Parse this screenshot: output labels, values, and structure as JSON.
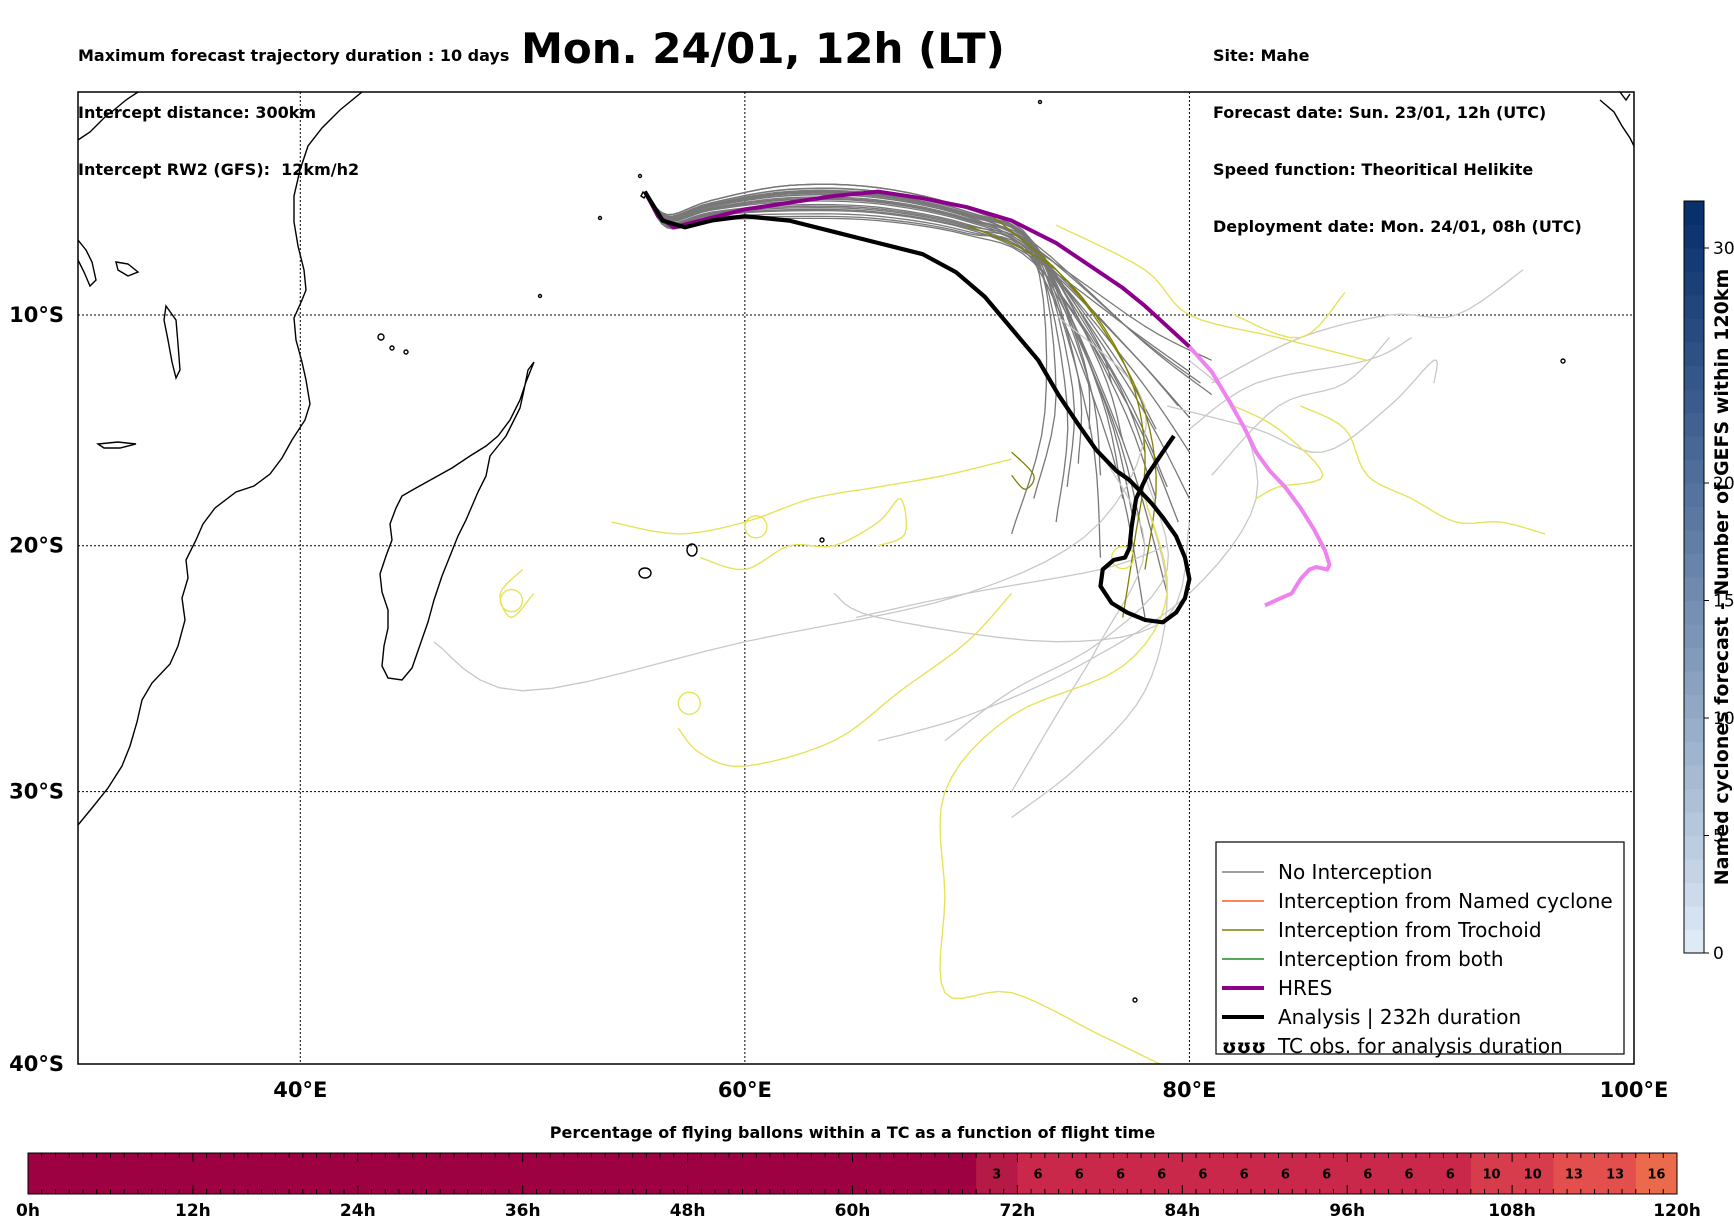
{
  "header": {
    "title": "Mon. 24/01, 12h (LT)",
    "left_lines": [
      "Maximum forecast trajectory duration : 10 days",
      "Intercept distance: 300km",
      "Intercept RW2 (GFS):  12km/h2"
    ],
    "right_lines": [
      "Site: Mahe",
      "Forecast date: Sun. 23/01, 12h (UTC)",
      "Speed function: Theoritical Helikite",
      "Deployment date: Mon. 24/01, 08h (UTC)"
    ]
  },
  "chart_data": [
    {
      "type": "line",
      "subtype": "map-trajectories",
      "title": "",
      "x_ticks": [
        "40°E",
        "60°E",
        "80°E",
        "100°E"
      ],
      "x_tick_values": [
        40,
        60,
        80,
        100
      ],
      "y_ticks": [
        "10°S",
        "20°S",
        "30°S",
        "40°S"
      ],
      "y_tick_values": [
        -10,
        -20,
        -30,
        -40
      ],
      "xlim": [
        30,
        100
      ],
      "ylim": [
        -40,
        0.5
      ],
      "grid": true,
      "legend_placement": "lower-right",
      "legend": [
        {
          "label": "No Interception",
          "color": "#808080",
          "style": "thin"
        },
        {
          "label": "Interception from Named cyclone",
          "color": "#ff5a1e",
          "style": "thin"
        },
        {
          "label": "Interception from Trochoid",
          "color": "#808000",
          "style": "thin"
        },
        {
          "label": "Interception from both",
          "color": "#1e8c1e",
          "style": "thin"
        },
        {
          "label": "HRES",
          "color": "#8b008b",
          "style": "thick"
        },
        {
          "label": "Analysis | 232h duration",
          "color": "#000000",
          "style": "thick"
        },
        {
          "label": "TC obs. for analysis duration",
          "color": "#000000",
          "style": "glyph",
          "glyph": "ʊʊʊ"
        }
      ],
      "series": [
        {
          "name": "HRES",
          "color": "#8b008b",
          "highlight_color": "#ee82ee",
          "lon": [
            55.5,
            56.1,
            56.8,
            58,
            60,
            62,
            64,
            66,
            68,
            70,
            72,
            74,
            75.5,
            77,
            78,
            79,
            80,
            81,
            81.8,
            82.5,
            83,
            83.6,
            84.3,
            85,
            85.6,
            86.1,
            86.3,
            86.2,
            85.7,
            85.4,
            85,
            84.6,
            84.1,
            83.4
          ],
          "lat": [
            -4.5,
            -5.6,
            -6.1,
            -5.8,
            -5.3,
            -5.0,
            -4.7,
            -4.5,
            -4.8,
            -5.2,
            -5.8,
            -6.8,
            -7.8,
            -8.8,
            -9.6,
            -10.5,
            -11.4,
            -12.5,
            -13.8,
            -15.0,
            -16.0,
            -16.8,
            -17.5,
            -18.4,
            -19.3,
            -20.2,
            -20.8,
            -21.0,
            -20.9,
            -21.0,
            -21.4,
            -22.0,
            -22.2,
            -22.5
          ]
        },
        {
          "name": "Analysis | 232h duration",
          "color": "#000000",
          "lon": [
            55.5,
            56.3,
            57.3,
            58.5,
            60,
            62,
            64,
            66,
            68,
            69.5,
            70.8,
            72,
            73.2,
            74.1,
            75,
            75.8,
            76.7,
            77.3,
            77.8,
            78.3,
            78.8,
            79.4,
            79.8,
            80,
            79.8,
            79.4,
            78.8,
            78,
            77.2,
            76.5,
            76.0,
            76.1,
            76.6,
            77.1,
            77.3,
            77.4,
            77.6,
            78.1,
            78.8,
            79.3
          ],
          "lat": [
            -4.5,
            -5.8,
            -6.1,
            -5.8,
            -5.6,
            -5.8,
            -6.3,
            -6.8,
            -7.3,
            -8.1,
            -9.2,
            -10.6,
            -12.0,
            -13.5,
            -14.8,
            -15.9,
            -16.8,
            -17.2,
            -17.7,
            -18.2,
            -18.8,
            -19.6,
            -20.5,
            -21.4,
            -22.2,
            -22.8,
            -23.2,
            -23.1,
            -22.8,
            -22.4,
            -21.7,
            -21.0,
            -20.6,
            -20.5,
            -20.1,
            -19.2,
            -18.0,
            -17.0,
            -16.0,
            -15.3
          ]
        },
        {
          "name": "No Interception",
          "color": "#787878",
          "count": 28
        },
        {
          "name": "Interception from Trochoid",
          "color": "#808000",
          "count": 3
        }
      ]
    },
    {
      "type": "heatmap",
      "subtype": "colorbar",
      "ylabel": "Named cyclones forecast - Number of GEFS within 120km",
      "tick_labels": [
        "0",
        "5",
        "10",
        "15",
        "20",
        "30"
      ],
      "tick_values": [
        0,
        5,
        10,
        15,
        20,
        30
      ],
      "range": [
        0,
        32
      ],
      "color_low": "#deebf7",
      "color_high": "#08306b"
    },
    {
      "type": "bar",
      "subtype": "timeline-strip",
      "title": "Percentage of flying ballons within a TC as a function of flight time",
      "x_tick_labels": [
        "0h",
        "12h",
        "24h",
        "36h",
        "48h",
        "60h",
        "72h",
        "84h",
        "96h",
        "108h",
        "120h"
      ],
      "x_tick_values": [
        0,
        12,
        24,
        36,
        48,
        60,
        72,
        84,
        96,
        108,
        120
      ],
      "xlim": [
        0,
        120
      ],
      "bin_hours": 3,
      "values": [
        0,
        0,
        0,
        0,
        0,
        0,
        0,
        0,
        0,
        0,
        0,
        0,
        0,
        0,
        0,
        0,
        0,
        0,
        0,
        0,
        0,
        0,
        0,
        3,
        6,
        6,
        6,
        6,
        6,
        6,
        6,
        6,
        6,
        6,
        6,
        10,
        10,
        13,
        13,
        16
      ],
      "labels": [
        "",
        "",
        "",
        "",
        "",
        "",
        "",
        "",
        "",
        "",
        "",
        "",
        "",
        "",
        "",
        "",
        "",
        "",
        "",
        "",
        "",
        "",
        "",
        "3",
        "6",
        "6",
        "6",
        "6",
        "6",
        "6",
        "6",
        "6",
        "6",
        "6",
        "6",
        "10",
        "10",
        "13",
        "13",
        "16"
      ],
      "colors": {
        "0": "#9e0142",
        "3": "#b41a45",
        "6": "#c9284a",
        "10": "#d73c4c",
        "13": "#e24f4c",
        "16": "#ec6a4c"
      }
    }
  ]
}
